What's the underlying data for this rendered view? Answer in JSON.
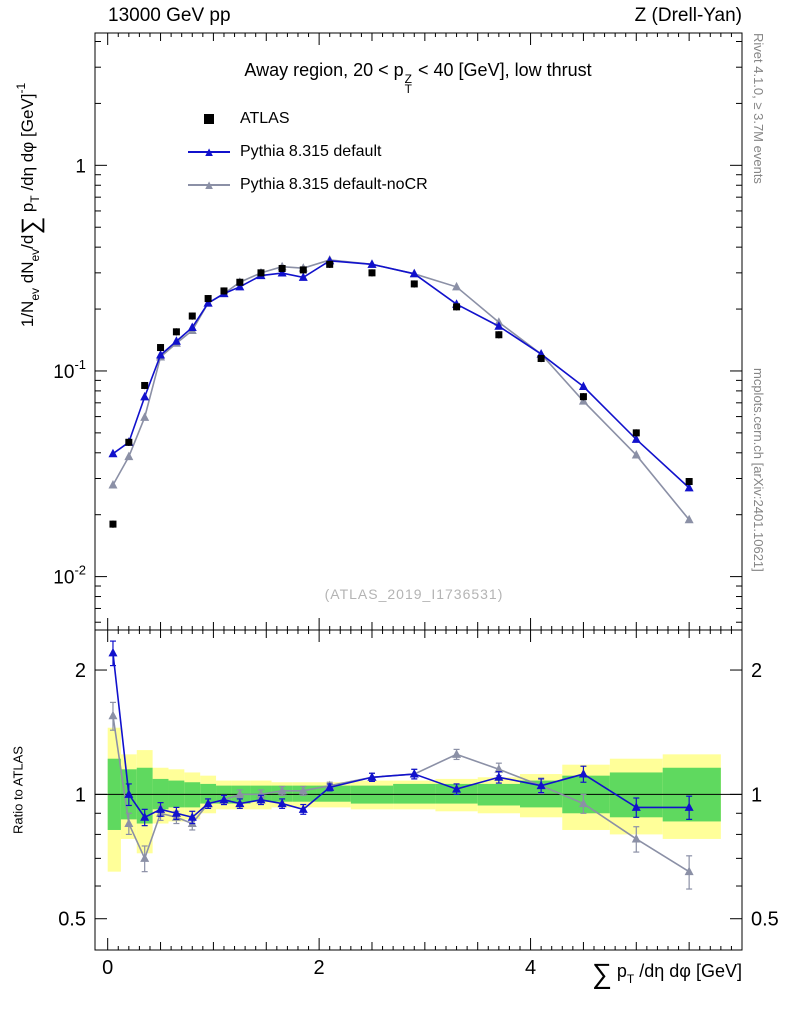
{
  "labels": {
    "header_left": "13000 GeV pp",
    "header_right": "Z (Drell-Yan)",
    "title": {
      "pre": "Away region, 20 < p",
      "sup": "Z",
      "sub": "T",
      "post": " < 40 [GeV], low thrust"
    },
    "ylabel": {
      "p1": "1/N",
      "s1": "ev",
      "p2": " dN",
      "s2": "ev",
      "p3": "/d",
      "sum": "∑",
      "p4": " p",
      "s3": "T",
      "p5": " /dη dφ  [GeV]",
      "sup": "-1"
    },
    "xlabel": {
      "sum": "∑",
      "p1": " p",
      "sub": "T",
      "p2": " /dη dφ [GeV]"
    },
    "watermark": "(ATLAS_2019_I1736531)",
    "side_top": "Rivet 4.1.0, ≥ 3.7M events",
    "side_bottom": "mcplots.cern.ch [arXiv:2401.10621]"
  },
  "icons": {
    "triangle_marker": "▲"
  },
  "chart_data": {
    "type": "line",
    "title": "Away region, 20 < pT^Z < 40 [GeV], low thrust",
    "xlabel": "sum pT /deta dphi [GeV]",
    "ylabel": "1/N_ev dN_ev/d sum pT /deta dphi [GeV]^-1",
    "xlim": [
      -0.12,
      6.0
    ],
    "ylim": [
      0.0055,
      4.4
    ],
    "yscale": "log",
    "xticks": [
      {
        "v": 0,
        "t": "0"
      },
      {
        "v": 2,
        "t": "2"
      },
      {
        "v": 4,
        "t": "4"
      }
    ],
    "yticks": [
      {
        "v": 1,
        "t": "1"
      },
      {
        "v": 0.1,
        "t": "10",
        "e": "-1"
      },
      {
        "v": 0.01,
        "t": "10",
        "e": "-2"
      }
    ],
    "x": [
      0.05,
      0.2,
      0.35,
      0.5,
      0.65,
      0.8,
      0.95,
      1.1,
      1.25,
      1.45,
      1.65,
      1.85,
      2.1,
      2.5,
      2.9,
      3.3,
      3.7,
      4.1,
      4.5,
      5.0,
      5.5
    ],
    "series": [
      {
        "key": "atlas",
        "name": "ATLAS",
        "color": "#000000",
        "marker": "square",
        "line": false,
        "err_frac": 0.04,
        "values": [
          0.018,
          0.045,
          0.085,
          0.13,
          0.155,
          0.185,
          0.225,
          0.245,
          0.27,
          0.3,
          0.315,
          0.31,
          0.33,
          0.3,
          0.265,
          0.205,
          0.15,
          0.115,
          0.075,
          0.05,
          0.029
        ]
      },
      {
        "key": "pythia-default",
        "name": "Pythia 8.315 default",
        "color": "#1111cc",
        "marker": "triangle",
        "line": true,
        "err_frac": 0.035,
        "values": [
          0.0396,
          0.045,
          0.0748,
          0.1196,
          0.1395,
          0.1628,
          0.2138,
          0.2377,
          0.2565,
          0.291,
          0.2993,
          0.2852,
          0.3432,
          0.33,
          0.2968,
          0.2112,
          0.165,
          0.1208,
          0.084,
          0.0465,
          0.027
        ]
      },
      {
        "key": "pythia-nocr",
        "name": "Pythia 8.315 default-noCR",
        "color": "#8b90a6",
        "marker": "triangle",
        "line": true,
        "err_frac": 0.035,
        "values": [
          0.0279,
          0.0383,
          0.0595,
          0.117,
          0.1364,
          0.1573,
          0.2138,
          0.2377,
          0.27,
          0.3,
          0.3213,
          0.3162,
          0.3465,
          0.33,
          0.2968,
          0.2563,
          0.1725,
          0.1208,
          0.0713,
          0.039,
          0.0189
        ]
      }
    ],
    "ratio": {
      "label": "Ratio to ATLAS",
      "ylim": [
        0.42,
        2.5
      ],
      "yscale": "log",
      "yticks": [
        {
          "v": 0.5,
          "t": "0.5"
        },
        {
          "v": 1,
          "t": "1"
        },
        {
          "v": 2,
          "t": "2"
        }
      ],
      "bin_edges": [
        0,
        0.125,
        0.275,
        0.425,
        0.575,
        0.725,
        0.875,
        1.025,
        1.175,
        1.35,
        1.55,
        1.75,
        1.975,
        2.3,
        2.7,
        3.1,
        3.5,
        3.9,
        4.3,
        4.75,
        5.25,
        5.8
      ],
      "bands": {
        "yellow": {
          "color": "#ffff99",
          "lo": [
            0.65,
            0.78,
            0.72,
            0.85,
            0.86,
            0.87,
            0.9,
            0.92,
            0.92,
            0.92,
            0.93,
            0.93,
            0.93,
            0.92,
            0.92,
            0.91,
            0.9,
            0.88,
            0.82,
            0.8,
            0.78
          ],
          "hi": [
            1.45,
            1.25,
            1.28,
            1.16,
            1.15,
            1.13,
            1.11,
            1.08,
            1.08,
            1.08,
            1.07,
            1.07,
            1.07,
            1.08,
            1.08,
            1.09,
            1.1,
            1.12,
            1.18,
            1.22,
            1.25
          ]
        },
        "green": {
          "color": "#5fd95f",
          "lo": [
            0.82,
            0.87,
            0.85,
            0.92,
            0.93,
            0.93,
            0.95,
            0.95,
            0.95,
            0.96,
            0.96,
            0.96,
            0.96,
            0.95,
            0.95,
            0.95,
            0.94,
            0.93,
            0.9,
            0.88,
            0.86
          ],
          "hi": [
            1.22,
            1.15,
            1.16,
            1.09,
            1.08,
            1.07,
            1.06,
            1.05,
            1.05,
            1.05,
            1.05,
            1.05,
            1.05,
            1.05,
            1.06,
            1.06,
            1.06,
            1.08,
            1.11,
            1.13,
            1.16
          ]
        }
      },
      "series": [
        {
          "key": "pythia-default",
          "color": "#1111cc",
          "values": [
            2.2,
            1.0,
            0.88,
            0.92,
            0.9,
            0.88,
            0.95,
            0.97,
            0.95,
            0.97,
            0.95,
            0.92,
            1.04,
            1.1,
            1.12,
            1.03,
            1.1,
            1.05,
            1.12,
            0.93,
            0.93
          ],
          "errors": [
            0.15,
            0.06,
            0.04,
            0.035,
            0.03,
            0.03,
            0.025,
            0.025,
            0.025,
            0.025,
            0.025,
            0.025,
            0.02,
            0.025,
            0.03,
            0.03,
            0.035,
            0.04,
            0.05,
            0.05,
            0.06
          ]
        },
        {
          "key": "pythia-nocr",
          "color": "#8b90a6",
          "values": [
            1.55,
            0.85,
            0.7,
            0.9,
            0.88,
            0.85,
            0.95,
            0.97,
            1.0,
            1.0,
            1.02,
            1.02,
            1.05,
            1.1,
            1.12,
            1.25,
            1.15,
            1.05,
            0.95,
            0.78,
            0.65
          ],
          "errors": [
            0.12,
            0.05,
            0.05,
            0.035,
            0.03,
            0.03,
            0.025,
            0.025,
            0.025,
            0.025,
            0.025,
            0.025,
            0.02,
            0.025,
            0.03,
            0.035,
            0.04,
            0.045,
            0.05,
            0.055,
            0.06
          ]
        }
      ]
    }
  }
}
